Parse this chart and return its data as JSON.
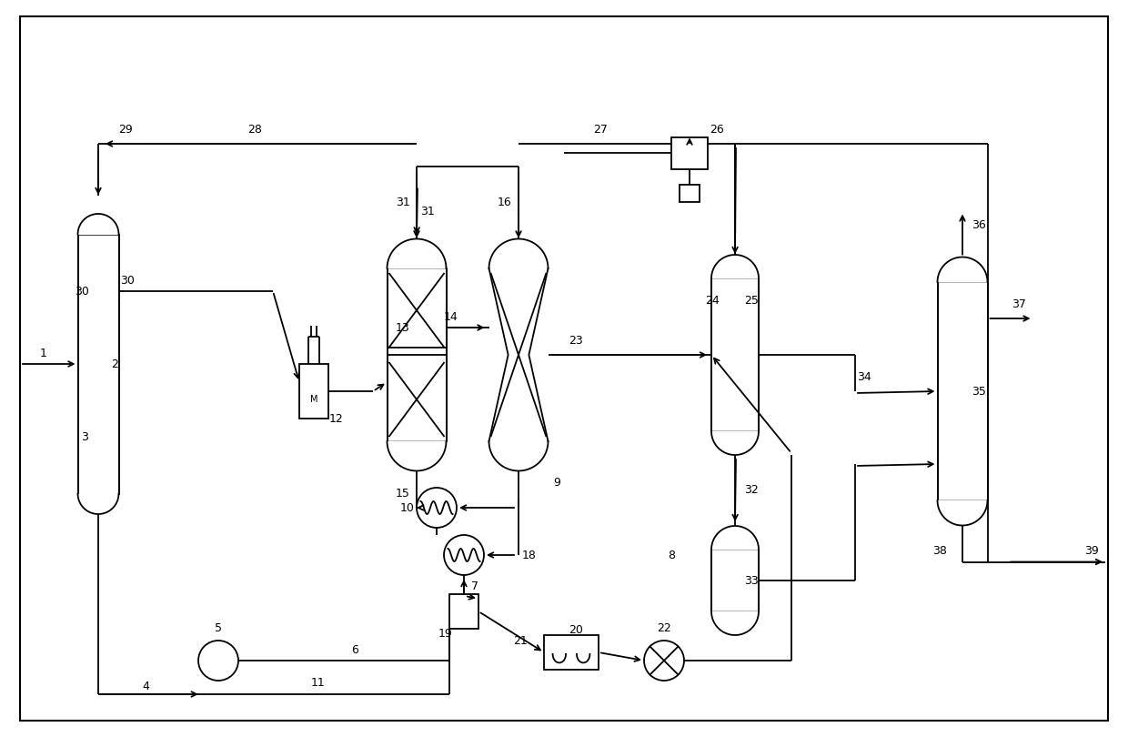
{
  "bg_color": "#ffffff",
  "line_color": "#000000",
  "fig_width": 12.4,
  "fig_height": 8.1,
  "dpi": 100
}
